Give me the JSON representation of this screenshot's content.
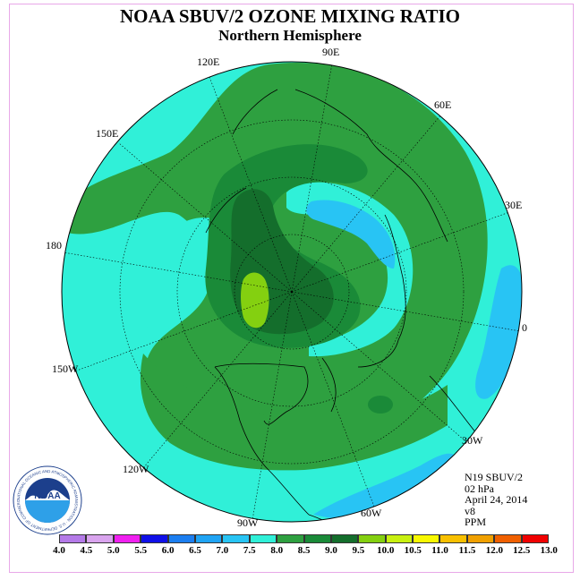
{
  "title": "NOAA SBUV/2 OZONE MIXING RATIO",
  "subtitle": "Northern Hemisphere",
  "longitude_labels": [
    "90E",
    "60E",
    "30E",
    "0",
    "30W",
    "60W",
    "90W",
    "120W",
    "150W",
    "180",
    "150E",
    "120E"
  ],
  "info": {
    "instrument": "N19 SBUV/2",
    "level": "02 hPa",
    "date": "April 24, 2014",
    "version": "v8",
    "units": "PPM"
  },
  "logo": {
    "text": "NOAA",
    "ring_text": "NATIONAL OCEANIC AND ATMOSPHERIC ADMINISTRATION · U.S. DEPARTMENT OF COMMERCE"
  },
  "colorbar": {
    "ticks": [
      "4.0",
      "4.5",
      "5.0",
      "5.5",
      "6.0",
      "6.5",
      "7.0",
      "7.5",
      "8.0",
      "8.5",
      "9.0",
      "9.5",
      "10.0",
      "10.5",
      "11.0",
      "11.5",
      "12.0",
      "12.5",
      "13.0"
    ],
    "colors": [
      "#b47ae8",
      "#d9a4ee",
      "#f020f0",
      "#1010e8",
      "#1c7ef0",
      "#20a4f4",
      "#28c4f4",
      "#30f0d8",
      "#2ea040",
      "#1a8a38",
      "#146e2c",
      "#84d010",
      "#c8f010",
      "#f8f800",
      "#f8c000",
      "#f0a000",
      "#f06000",
      "#f00000",
      "#8a5a3c"
    ]
  },
  "field_colors": {
    "level_7_5": "#30f0d8",
    "level_8_0": "#2ea040",
    "level_8_5": "#1a8a38",
    "level_9_0": "#146e2c",
    "level_9_5": "#84d010",
    "level_7_0": "#28c4f4"
  }
}
